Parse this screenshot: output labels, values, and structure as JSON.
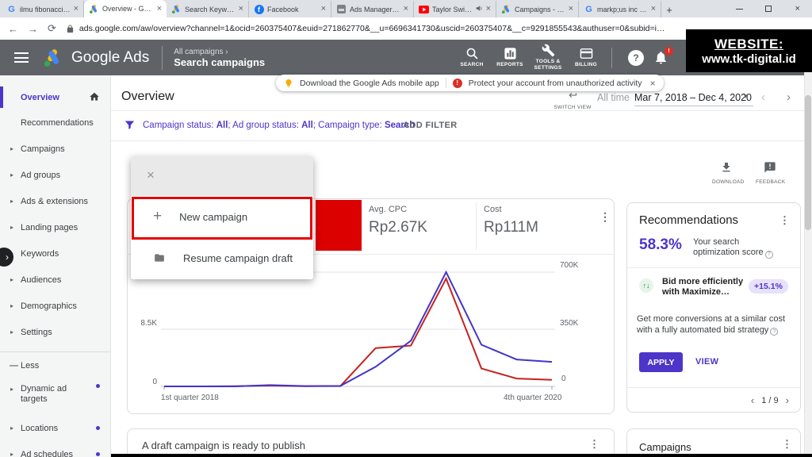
{
  "watermark": {
    "line1": "WEBSITE:",
    "line2": "www.tk-digital.id"
  },
  "icons": {
    "close": "×",
    "kebab": "⋮",
    "caret": "▾",
    "chev_left": "‹",
    "chev_right": "›",
    "arrow_item": "▸",
    "plus": "+",
    "minus": "—",
    "back": "←",
    "forward": "→",
    "reload": "⟳",
    "new_tab": "+",
    "question": "?",
    "bang": "!",
    "expander": "›",
    "updown": "↑↓"
  },
  "browser": {
    "tabs": [
      {
        "title": "ilmu fibonacci ada",
        "favicon": "google",
        "active": false,
        "audio": false
      },
      {
        "title": "Overview - Getrich",
        "favicon": "gads",
        "active": true,
        "audio": false
      },
      {
        "title": "Search Keywords -",
        "favicon": "gads",
        "active": false,
        "audio": false
      },
      {
        "title": "Facebook",
        "favicon": "facebook",
        "active": false,
        "audio": false
      },
      {
        "title": "Ads Manager - Ma",
        "favicon": "adsmanager",
        "active": false,
        "audio": false
      },
      {
        "title": "Taylor Swift - S",
        "favicon": "youtube",
        "active": false,
        "audio": true
      },
      {
        "title": "Campaigns - Getri",
        "favicon": "gads",
        "active": false,
        "audio": false
      },
      {
        "title": "markp;us inc - Go",
        "favicon": "google",
        "active": false,
        "audio": false
      }
    ],
    "url": "ads.google.com/aw/overview?channel=1&ocid=260375407&euid=271862770&__u=6696341730&uscid=260375407&__c=9291855543&authuser=0&subid=id-en-et-g-aw-c-home-awhp"
  },
  "header": {
    "brand": "Google Ads",
    "breadcrumb_top": "All campaigns",
    "breadcrumb_sub": "Search campaigns",
    "actions": [
      {
        "label": "SEARCH"
      },
      {
        "label": "REPORTS"
      },
      {
        "label": "TOOLS & SETTINGS"
      },
      {
        "label": "BILLING"
      }
    ]
  },
  "notifications": {
    "msg1": "Download the Google Ads mobile app",
    "msg2": "Protect your account from unauthorized activity"
  },
  "sidebar": {
    "items": [
      {
        "label": "Overview",
        "active": true,
        "home": true
      },
      {
        "label": "Recommendations"
      },
      {
        "label": "Campaigns",
        "arrow": true
      },
      {
        "label": "Ad groups",
        "arrow": true
      },
      {
        "label": "Ads & extensions",
        "arrow": true
      },
      {
        "label": "Landing pages",
        "arrow": true
      },
      {
        "label": "Keywords",
        "arrow": true
      },
      {
        "label": "Audiences",
        "arrow": true
      },
      {
        "label": "Demographics",
        "arrow": true
      },
      {
        "label": "Settings",
        "arrow": true
      },
      {
        "divider": true
      },
      {
        "label": "Less",
        "minus": true
      },
      {
        "label": "Dynamic ad targets",
        "arrow": true,
        "dot": true,
        "wrap": true
      },
      {
        "label": "Locations",
        "arrow": true,
        "dot": true
      },
      {
        "label": "Ad schedules",
        "arrow": true,
        "dot": true
      }
    ]
  },
  "page": {
    "title": "Overview",
    "filter_parts": [
      {
        "text": "Campaign status: "
      },
      {
        "text": "All",
        "bold": true
      },
      {
        "text": "; Ad group status: "
      },
      {
        "text": "All",
        "bold": true
      },
      {
        "text": "; Campaign type: "
      },
      {
        "text": "Search",
        "bold": true
      }
    ],
    "add_filter": "ADD FILTER",
    "switch_view": "SWITCH VIEW",
    "date_preset": "All time",
    "date_range": "Mar 7, 2018 – Dec 4, 2020",
    "download": "DOWNLOAD",
    "feedback": "FEEDBACK"
  },
  "menu": {
    "items": [
      {
        "label": "New campaign",
        "icon": "plus-icon",
        "highlighted": true
      },
      {
        "label": "Resume campaign draft",
        "icon": "folder-icon"
      }
    ]
  },
  "stats": [
    {
      "label": "Avg. CPC",
      "value": "Rp2.67K"
    },
    {
      "label": "Cost",
      "value": "Rp111M"
    }
  ],
  "chart_data": {
    "type": "line",
    "categories": [
      "Q1 2018",
      "Q2 2018",
      "Q3 2018",
      "Q4 2018",
      "Q1 2019",
      "Q2 2019",
      "Q3 2019",
      "Q4 2019",
      "Q1 2020",
      "Q2 2020",
      "Q3 2020",
      "Q4 2020"
    ],
    "series": [
      {
        "name": "blue",
        "color": "#4235c8",
        "values_right_axis_thousands": [
          0,
          0,
          0,
          8,
          2,
          3,
          120,
          280,
          700,
          255,
          165,
          150
        ]
      },
      {
        "name": "red",
        "color": "#c5221f",
        "values_right_axis_thousands": [
          0,
          0,
          1,
          5,
          1,
          2,
          235,
          250,
          660,
          110,
          48,
          40
        ]
      }
    ],
    "left_axis_labels": [
      "8.5K",
      "0"
    ],
    "right_axis_labels": [
      "700K",
      "350K",
      "0"
    ],
    "x_labels": [
      "1st quarter 2018",
      "4th quarter 2020"
    ],
    "left_ylim": [
      0,
      17000
    ],
    "right_ylim": [
      0,
      700000
    ],
    "grid": true,
    "legend": "hidden"
  },
  "recommendations": {
    "title": "Recommendations",
    "score": "58.3%",
    "score_label_1": "Your search",
    "score_label_2": "optimization score",
    "item_title_1": "Bid more efficiently",
    "item_title_2": "with Maximize…",
    "item_badge": "+15.1%",
    "desc": "Get more conversions at a similar cost with a fully automated bid strategy",
    "apply": "APPLY",
    "view": "VIEW",
    "pager": "1 / 9"
  },
  "bottom_cards": {
    "draft_title": "A draft campaign is ready to publish",
    "campaigns_title": "Campaigns"
  },
  "colors": {
    "accent_purple": "#4d35c9",
    "chart_blue": "#4235c8",
    "chart_red": "#c5221f",
    "annotation_red": "#e60000",
    "alert_red": "#d93025",
    "bulb_yellow": "#f9ab00"
  }
}
